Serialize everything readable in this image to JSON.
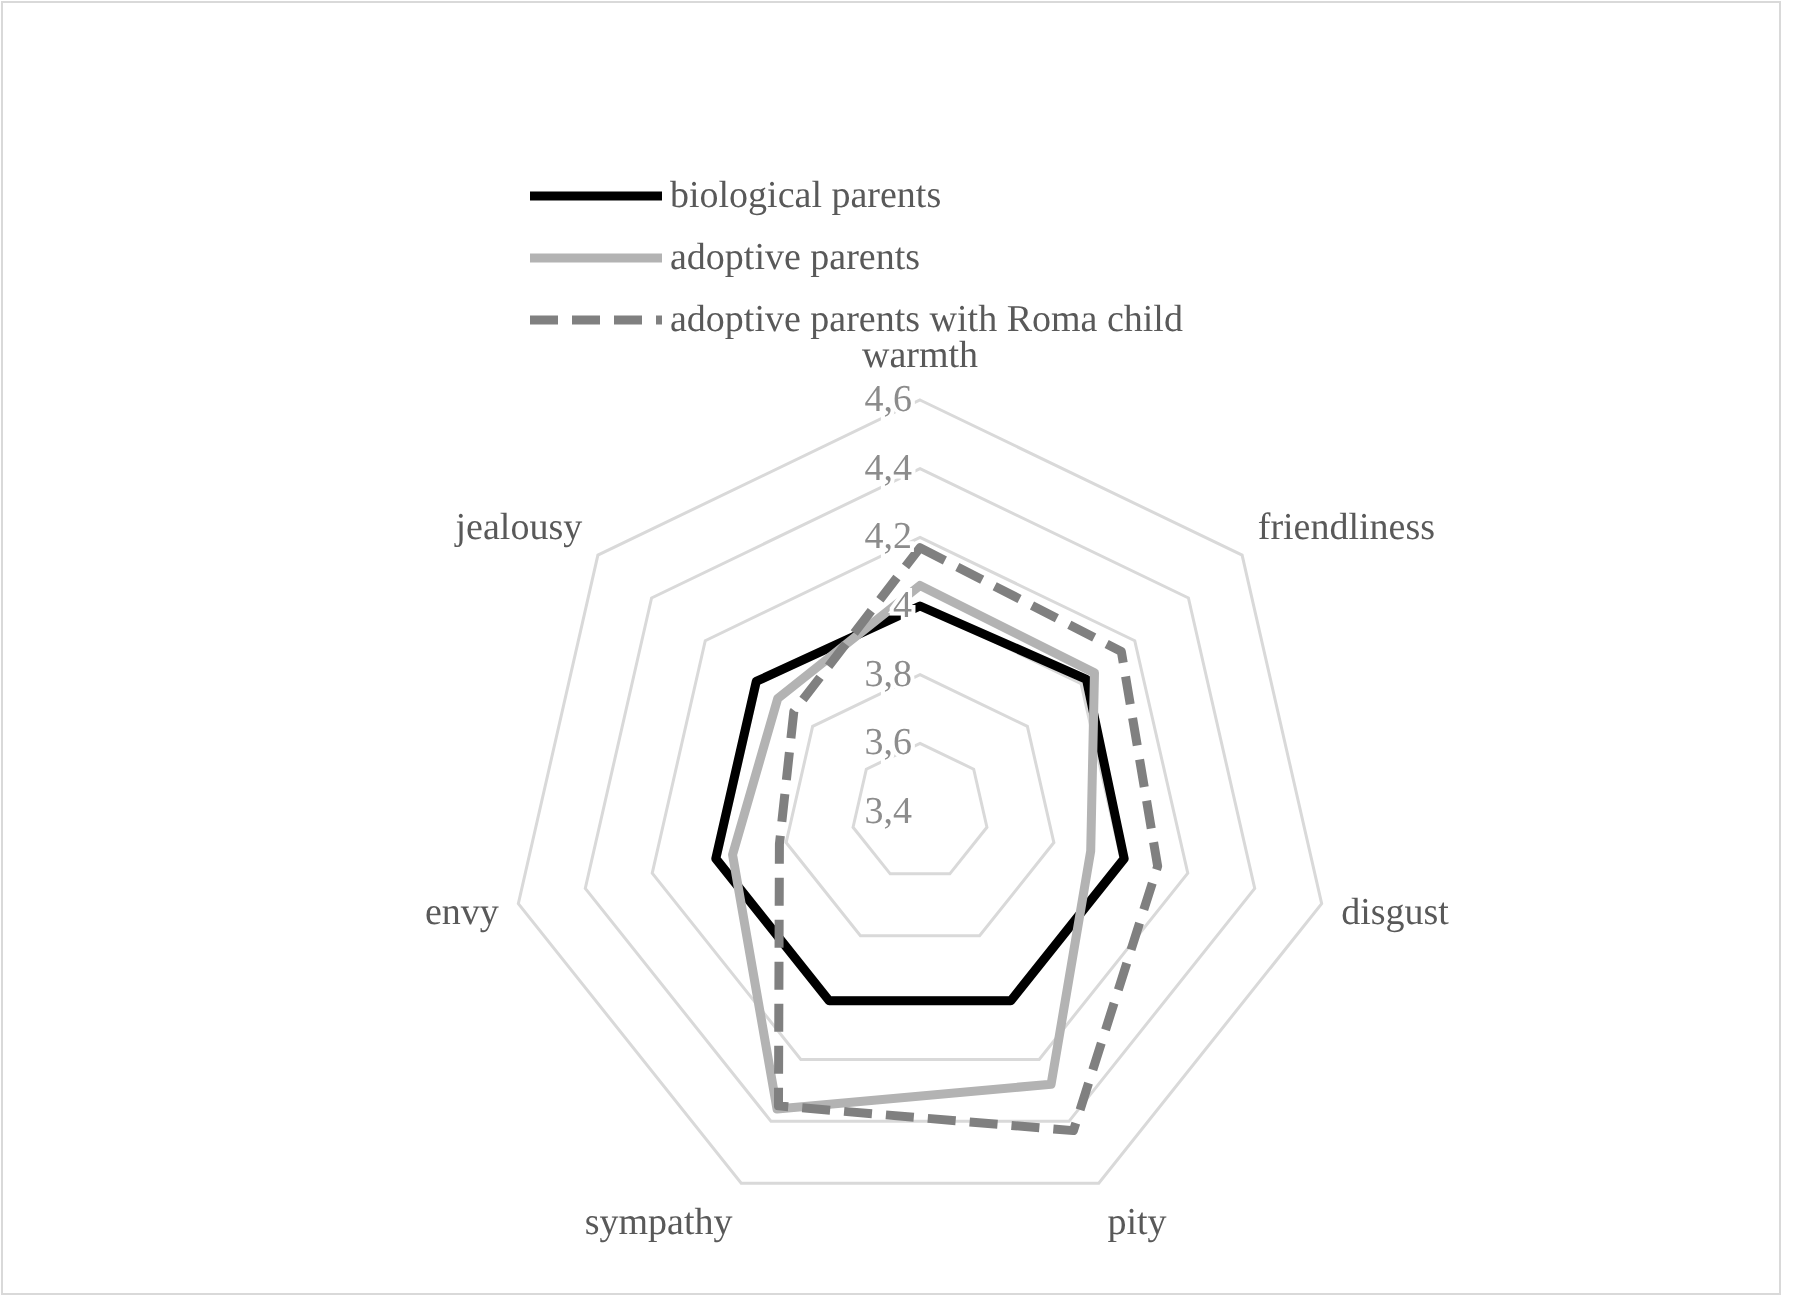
{
  "chart_data": {
    "type": "radar",
    "categories": [
      "warmth",
      "friendliness",
      "disgust",
      "pity",
      "sympathy",
      "envy",
      "jealousy"
    ],
    "ylim": [
      3.4,
      4.6
    ],
    "yticks": [
      {
        "value": 3.4,
        "label": "3,4"
      },
      {
        "value": 3.6,
        "label": "3,6"
      },
      {
        "value": 3.8,
        "label": "3,8"
      },
      {
        "value": 4,
        "label": "4"
      },
      {
        "value": 4.2,
        "label": "4,2"
      },
      {
        "value": 4.4,
        "label": "4,4"
      },
      {
        "value": 4.6,
        "label": "4,6"
      }
    ],
    "grid": true,
    "legend": "top left",
    "series": [
      {
        "name": "biological parents",
        "color": "#000000",
        "line_style": "solid",
        "values": [
          4.0,
          4.02,
          4.01,
          4.01,
          4.01,
          4.01,
          4.01
        ]
      },
      {
        "name": "adoptive parents",
        "color": "#b3b3b3",
        "line_style": "solid",
        "values": [
          4.06,
          4.05,
          3.91,
          4.28,
          4.36,
          3.96,
          3.93
        ]
      },
      {
        "name": "adoptive parents with Roma child",
        "color": "#808080",
        "line_style": "dashed",
        "values": [
          4.17,
          4.15,
          4.11,
          4.43,
          4.35,
          3.82,
          3.87
        ]
      }
    ]
  }
}
